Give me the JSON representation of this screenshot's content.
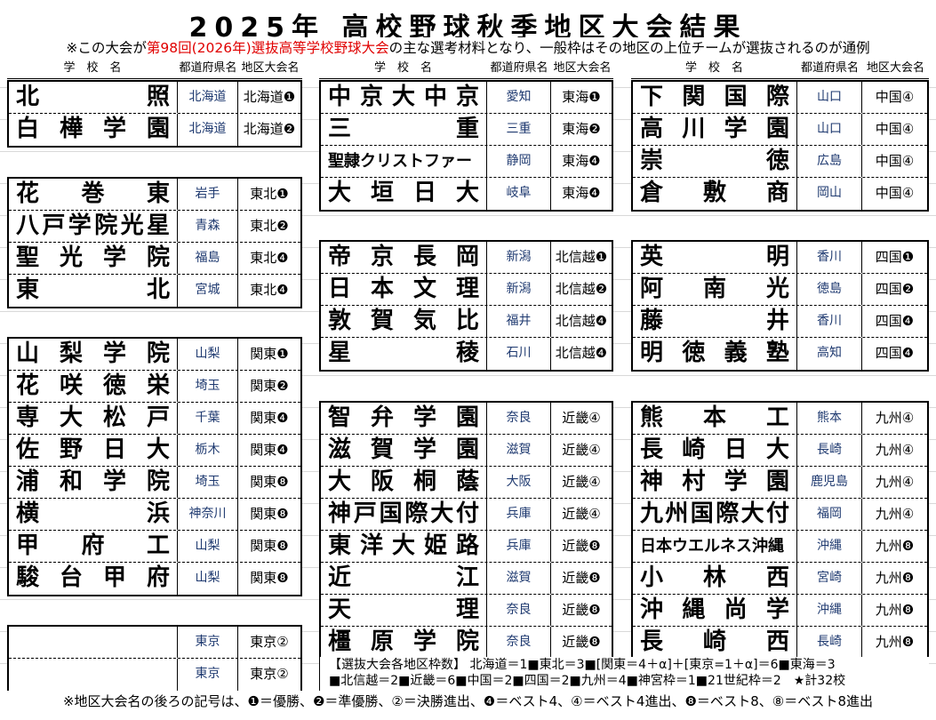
{
  "title": "2025年 高校野球秋季地区大会結果",
  "subtitle": {
    "pre": "※この大会が",
    "highlight": "第98回(2026年)選抜高等学校野球大会",
    "post": "の主な選考材料となり、一般枠はその地区の上位チームが選抜されるのが通例"
  },
  "headers": {
    "school": "学　校　名",
    "prefecture": "都道府県名",
    "region": "地区大会名"
  },
  "columns": [
    {
      "blocks": [
        {
          "rows": [
            {
              "name": "北照",
              "pref": "北海道",
              "region": "北海道❶"
            },
            {
              "name": "白樺学園",
              "pref": "北海道",
              "region": "北海道❷"
            }
          ]
        },
        {
          "rows": [
            {
              "name": "花巻東",
              "pref": "岩手",
              "region": "東北❶"
            },
            {
              "name": "八戸学院光星",
              "pref": "青森",
              "region": "東北❷"
            },
            {
              "name": "聖光学院",
              "pref": "福島",
              "region": "東北❹"
            },
            {
              "name": "東北",
              "pref": "宮城",
              "region": "東北❹"
            }
          ]
        },
        {
          "rows": [
            {
              "name": "山梨学院",
              "pref": "山梨",
              "region": "関東❶"
            },
            {
              "name": "花咲徳栄",
              "pref": "埼玉",
              "region": "関東❷"
            },
            {
              "name": "専大松戸",
              "pref": "千葉",
              "region": "関東❹"
            },
            {
              "name": "佐野日大",
              "pref": "栃木",
              "region": "関東❹"
            },
            {
              "name": "浦和学院",
              "pref": "埼玉",
              "region": "関東❽"
            },
            {
              "name": "横浜",
              "pref": "神奈川",
              "region": "関東❽"
            },
            {
              "name": "甲府工",
              "pref": "山梨",
              "region": "関東❽"
            },
            {
              "name": "駿台甲府",
              "pref": "山梨",
              "region": "関東❽"
            }
          ]
        },
        {
          "rows": [
            {
              "name": "",
              "pref": "東京",
              "region": "東京②"
            },
            {
              "name": "",
              "pref": "東京",
              "region": "東京②"
            }
          ]
        }
      ]
    },
    {
      "blocks": [
        {
          "rows": [
            {
              "name": "中京大中京",
              "pref": "愛知",
              "region": "東海❶"
            },
            {
              "name": "三重",
              "pref": "三重",
              "region": "東海❷"
            },
            {
              "name": "聖隷クリストファー",
              "pref": "静岡",
              "region": "東海❹"
            },
            {
              "name": "大垣日大",
              "pref": "岐阜",
              "region": "東海❹"
            }
          ]
        },
        {
          "rows": [
            {
              "name": "帝京長岡",
              "pref": "新潟",
              "region": "北信越❶"
            },
            {
              "name": "日本文理",
              "pref": "新潟",
              "region": "北信越❷"
            },
            {
              "name": "敦賀気比",
              "pref": "福井",
              "region": "北信越❹"
            },
            {
              "name": "星稜",
              "pref": "石川",
              "region": "北信越❹"
            }
          ]
        },
        {
          "rows": [
            {
              "name": "智弁学園",
              "pref": "奈良",
              "region": "近畿④"
            },
            {
              "name": "滋賀学園",
              "pref": "滋賀",
              "region": "近畿④"
            },
            {
              "name": "大阪桐蔭",
              "pref": "大阪",
              "region": "近畿④"
            },
            {
              "name": "神戸国際大付",
              "pref": "兵庫",
              "region": "近畿④"
            },
            {
              "name": "東洋大姫路",
              "pref": "兵庫",
              "region": "近畿❽"
            },
            {
              "name": "近江",
              "pref": "滋賀",
              "region": "近畿❽"
            },
            {
              "name": "天理",
              "pref": "奈良",
              "region": "近畿❽"
            },
            {
              "name": "橿原学院",
              "pref": "奈良",
              "region": "近畿❽"
            }
          ]
        }
      ]
    },
    {
      "blocks": [
        {
          "rows": [
            {
              "name": "下関国際",
              "pref": "山口",
              "region": "中国④"
            },
            {
              "name": "高川学園",
              "pref": "山口",
              "region": "中国④"
            },
            {
              "name": "崇徳",
              "pref": "広島",
              "region": "中国④"
            },
            {
              "name": "倉敷商",
              "pref": "岡山",
              "region": "中国④"
            }
          ]
        },
        {
          "rows": [
            {
              "name": "英明",
              "pref": "香川",
              "region": "四国❶"
            },
            {
              "name": "阿南光",
              "pref": "徳島",
              "region": "四国❷"
            },
            {
              "name": "藤井",
              "pref": "香川",
              "region": "四国❹"
            },
            {
              "name": "明徳義塾",
              "pref": "高知",
              "region": "四国❹"
            }
          ]
        },
        {
          "rows": [
            {
              "name": "熊本工",
              "pref": "熊本",
              "region": "九州④"
            },
            {
              "name": "長崎日大",
              "pref": "長崎",
              "region": "九州④"
            },
            {
              "name": "神村学園",
              "pref": "鹿児島",
              "region": "九州④"
            },
            {
              "name": "九州国際大付",
              "pref": "福岡",
              "region": "九州④"
            },
            {
              "name": "日本ウエルネス沖縄",
              "pref": "沖縄",
              "region": "九州❽"
            },
            {
              "name": "小林西",
              "pref": "宮崎",
              "region": "九州❽"
            },
            {
              "name": "沖縄尚学",
              "pref": "沖縄",
              "region": "九州❽"
            },
            {
              "name": "長崎西",
              "pref": "長崎",
              "region": "九州❽"
            }
          ]
        }
      ]
    }
  ],
  "quota": {
    "line1": "【選抜大会各地区枠数】 北海道＝1■東北＝3■[関東＝4＋α]＋[東京=1＋α]＝6■東海＝3",
    "line2": "■北信越＝2■近畿＝6■中国＝2■四国＝2■九州＝4■神宮枠＝1■21世紀枠＝2　★計32校"
  },
  "footnote": "※地区大会名の後ろの記号は、❶＝優勝、❷＝準優勝、②＝決勝進出、❹＝ベスト4、④＝ベスト4進出、❽＝ベスト8、⑧＝ベスト8進出",
  "colors": {
    "highlight": "#e00000",
    "prefecture_text": "#1f3a70"
  }
}
